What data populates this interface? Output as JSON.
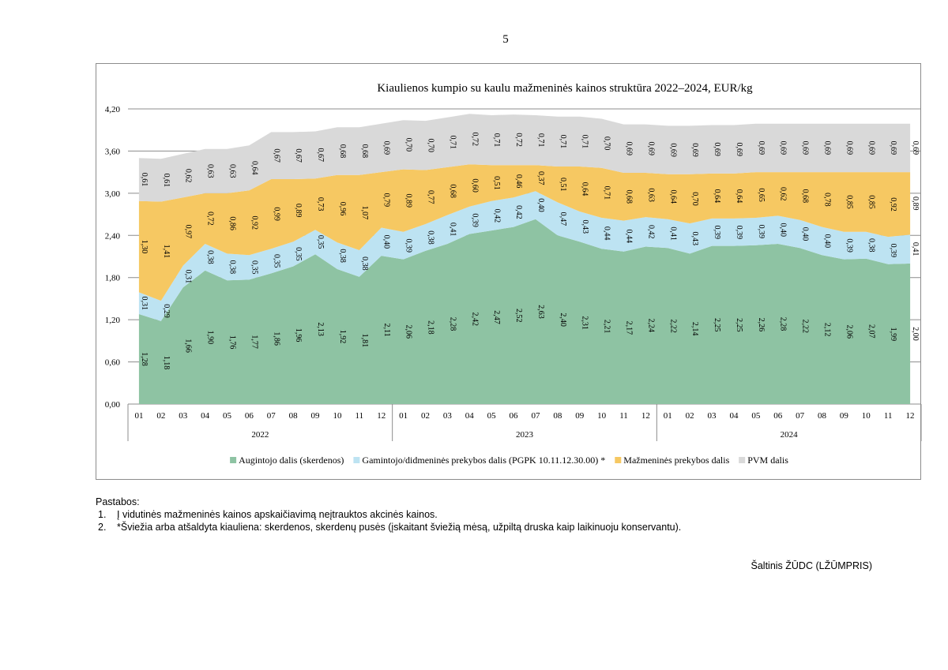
{
  "page_number": "5",
  "chart_data": {
    "type": "area",
    "stacked": true,
    "title": "Kiaulienos kumpio su kaulu mažmeninės kainos struktūra 2022–2024, EUR/kg",
    "ylim": [
      0,
      4.2
    ],
    "y_ticks": [
      "0,00",
      "0,60",
      "1,20",
      "1,80",
      "2,40",
      "3,00",
      "3,60",
      "4,20"
    ],
    "y_tick_values": [
      0,
      0.6,
      1.2,
      1.8,
      2.4,
      3.0,
      3.6,
      4.2
    ],
    "months": [
      "01",
      "02",
      "03",
      "04",
      "05",
      "06",
      "07",
      "08",
      "09",
      "10",
      "11",
      "12",
      "01",
      "02",
      "03",
      "04",
      "05",
      "06",
      "07",
      "08",
      "09",
      "10",
      "11",
      "12",
      "01",
      "02",
      "03",
      "04",
      "05",
      "06",
      "07",
      "08",
      "09",
      "10",
      "11",
      "12"
    ],
    "years": [
      "2022",
      "2023",
      "2024"
    ],
    "series": [
      {
        "name": "Augintojo dalis (skerdenos)",
        "color": "#8ec3a3",
        "values": [
          1.28,
          1.18,
          1.66,
          1.9,
          1.76,
          1.77,
          1.86,
          1.96,
          2.13,
          1.92,
          1.81,
          2.11,
          2.06,
          2.18,
          2.28,
          2.42,
          2.47,
          2.52,
          2.63,
          2.4,
          2.31,
          2.21,
          2.17,
          2.24,
          2.22,
          2.14,
          2.25,
          2.25,
          2.26,
          2.28,
          2.22,
          2.12,
          2.06,
          2.07,
          1.99,
          2.0
        ],
        "labels": [
          "1,28",
          "1,18",
          "1,66",
          "1,90",
          "1,76",
          "1,77",
          "1,86",
          "1,96",
          "2,13",
          "1,92",
          "1,81",
          "2,11",
          "2,06",
          "2,18",
          "2,28",
          "2,42",
          "2,47",
          "2,52",
          "2,63",
          "2,40",
          "2,31",
          "2,21",
          "2,17",
          "2,24",
          "2,22",
          "2,14",
          "2,25",
          "2,25",
          "2,26",
          "2,28",
          "2,22",
          "2,12",
          "2,06",
          "2,07",
          "1,99",
          "2,00"
        ]
      },
      {
        "name": "Gamintojo/didmeninės prekybos dalis (PGPK 10.11.12.30.00) *",
        "color": "#bde3f2",
        "values": [
          0.31,
          0.29,
          0.31,
          0.38,
          0.38,
          0.35,
          0.35,
          0.35,
          0.35,
          0.38,
          0.38,
          0.4,
          0.39,
          0.38,
          0.41,
          0.39,
          0.42,
          0.42,
          0.4,
          0.47,
          0.43,
          0.44,
          0.44,
          0.42,
          0.41,
          0.43,
          0.39,
          0.39,
          0.39,
          0.4,
          0.4,
          0.4,
          0.39,
          0.38,
          0.39,
          0.41
        ],
        "labels": [
          "0,31",
          "0,29",
          "0,31",
          "0,38",
          "0,38",
          "0,35",
          "0,35",
          "0,35",
          "0,35",
          "0,38",
          "0,38",
          "0,40",
          "0,39",
          "0,38",
          "0,41",
          "0,39",
          "0,42",
          "0,42",
          "0,40",
          "0,47",
          "0,43",
          "0,44",
          "0,44",
          "0,42",
          "0,41",
          "0,43",
          "0,39",
          "0,39",
          "0,39",
          "0,40",
          "0,40",
          "0,40",
          "0,39",
          "0,38",
          "0,39",
          "0,41"
        ]
      },
      {
        "name": "Mažmeninės prekybos dalis",
        "color": "#f6c862",
        "values": [
          1.3,
          1.41,
          0.97,
          0.72,
          0.86,
          0.92,
          0.99,
          0.89,
          0.73,
          0.96,
          1.07,
          0.79,
          0.89,
          0.77,
          0.68,
          0.6,
          0.51,
          0.46,
          0.37,
          0.51,
          0.64,
          0.71,
          0.68,
          0.63,
          0.64,
          0.7,
          0.64,
          0.64,
          0.65,
          0.62,
          0.68,
          0.78,
          0.85,
          0.85,
          0.92,
          0.89
        ],
        "labels": [
          "1,30",
          "1,41",
          "0,97",
          "0,72",
          "0,86",
          "0,92",
          "0,99",
          "0,89",
          "0,73",
          "0,96",
          "1,07",
          "0,79",
          "0,89",
          "0,77",
          "0,68",
          "0,60",
          "0,51",
          "0,46",
          "0,37",
          "0,51",
          "0,64",
          "0,71",
          "0,68",
          "0,63",
          "0,64",
          "0,70",
          "0,64",
          "0,64",
          "0,65",
          "0,62",
          "0,68",
          "0,78",
          "0,85",
          "0,85",
          "0,92",
          "0,89"
        ]
      },
      {
        "name": "PVM dalis",
        "color": "#d9d9d9",
        "values": [
          0.61,
          0.61,
          0.62,
          0.63,
          0.63,
          0.64,
          0.67,
          0.67,
          0.67,
          0.68,
          0.68,
          0.69,
          0.7,
          0.7,
          0.71,
          0.72,
          0.71,
          0.72,
          0.71,
          0.71,
          0.71,
          0.7,
          0.69,
          0.69,
          0.69,
          0.69,
          0.69,
          0.69,
          0.69,
          0.69,
          0.69,
          0.69,
          0.69,
          0.69,
          0.69,
          0.69
        ],
        "labels": [
          "0,61",
          "0,61",
          "0,62",
          "0,63",
          "0,63",
          "0,64",
          "0,67",
          "0,67",
          "0,67",
          "0,68",
          "0,68",
          "0,69",
          "0,70",
          "0,70",
          "0,71",
          "0,72",
          "0,71",
          "0,72",
          "0,71",
          "0,71",
          "0,71",
          "0,70",
          "0,69",
          "0,69",
          "0,69",
          "0,69",
          "0,69",
          "0,69",
          "0,69",
          "0,69",
          "0,69",
          "0,69",
          "0,69",
          "0,69",
          "0,69",
          "0,69"
        ]
      }
    ]
  },
  "notes": {
    "heading": "Pastabos:",
    "items": [
      {
        "num": "1.",
        "text": "Į vidutinės mažmeninės kainos apskaičiavimą neįtrauktos akcinės kainos."
      },
      {
        "num": "2.",
        "text": "*Šviežia arba atšaldyta kiauliena: skerdenos, skerdenų pusės (įskaitant šviežią mėsą, užpiltą druska kaip laikinuoju konservantu)."
      }
    ]
  },
  "source": "Šaltinis ŽŪDC (LŽŪMPRIS)"
}
